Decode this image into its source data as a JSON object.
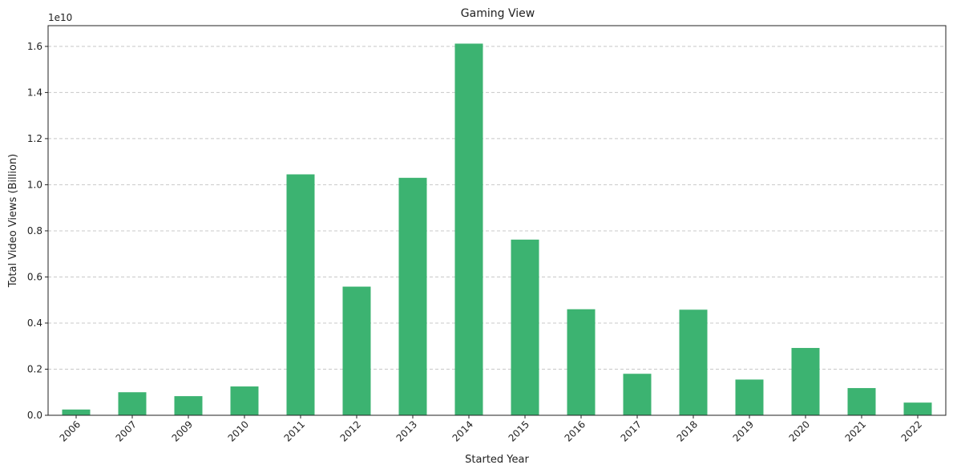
{
  "chart_data": {
    "type": "bar",
    "title": "Gaming View",
    "xlabel": "Started Year",
    "ylabel": "Total Video Views (Billion)",
    "offset_label": "1e10",
    "categories": [
      "2006",
      "2007",
      "2009",
      "2010",
      "2011",
      "2012",
      "2013",
      "2014",
      "2015",
      "2016",
      "2017",
      "2018",
      "2019",
      "2020",
      "2021",
      "2022"
    ],
    "values": [
      0.025,
      0.1,
      0.083,
      0.125,
      1.045,
      0.558,
      1.03,
      1.612,
      0.762,
      0.46,
      0.18,
      0.458,
      0.155,
      0.292,
      0.118,
      0.055
    ],
    "ylim": [
      0,
      1.69
    ],
    "yticks": [
      "0.0",
      "0.2",
      "0.4",
      "0.6",
      "0.8",
      "1.0",
      "1.2",
      "1.4",
      "1.6"
    ],
    "ytick_values": [
      0,
      0.2,
      0.4,
      0.6,
      0.8,
      1.0,
      1.2,
      1.4,
      1.6
    ],
    "bar_color": "#3cb371",
    "grid": "y-dashed",
    "xtick_rotation": 45
  }
}
